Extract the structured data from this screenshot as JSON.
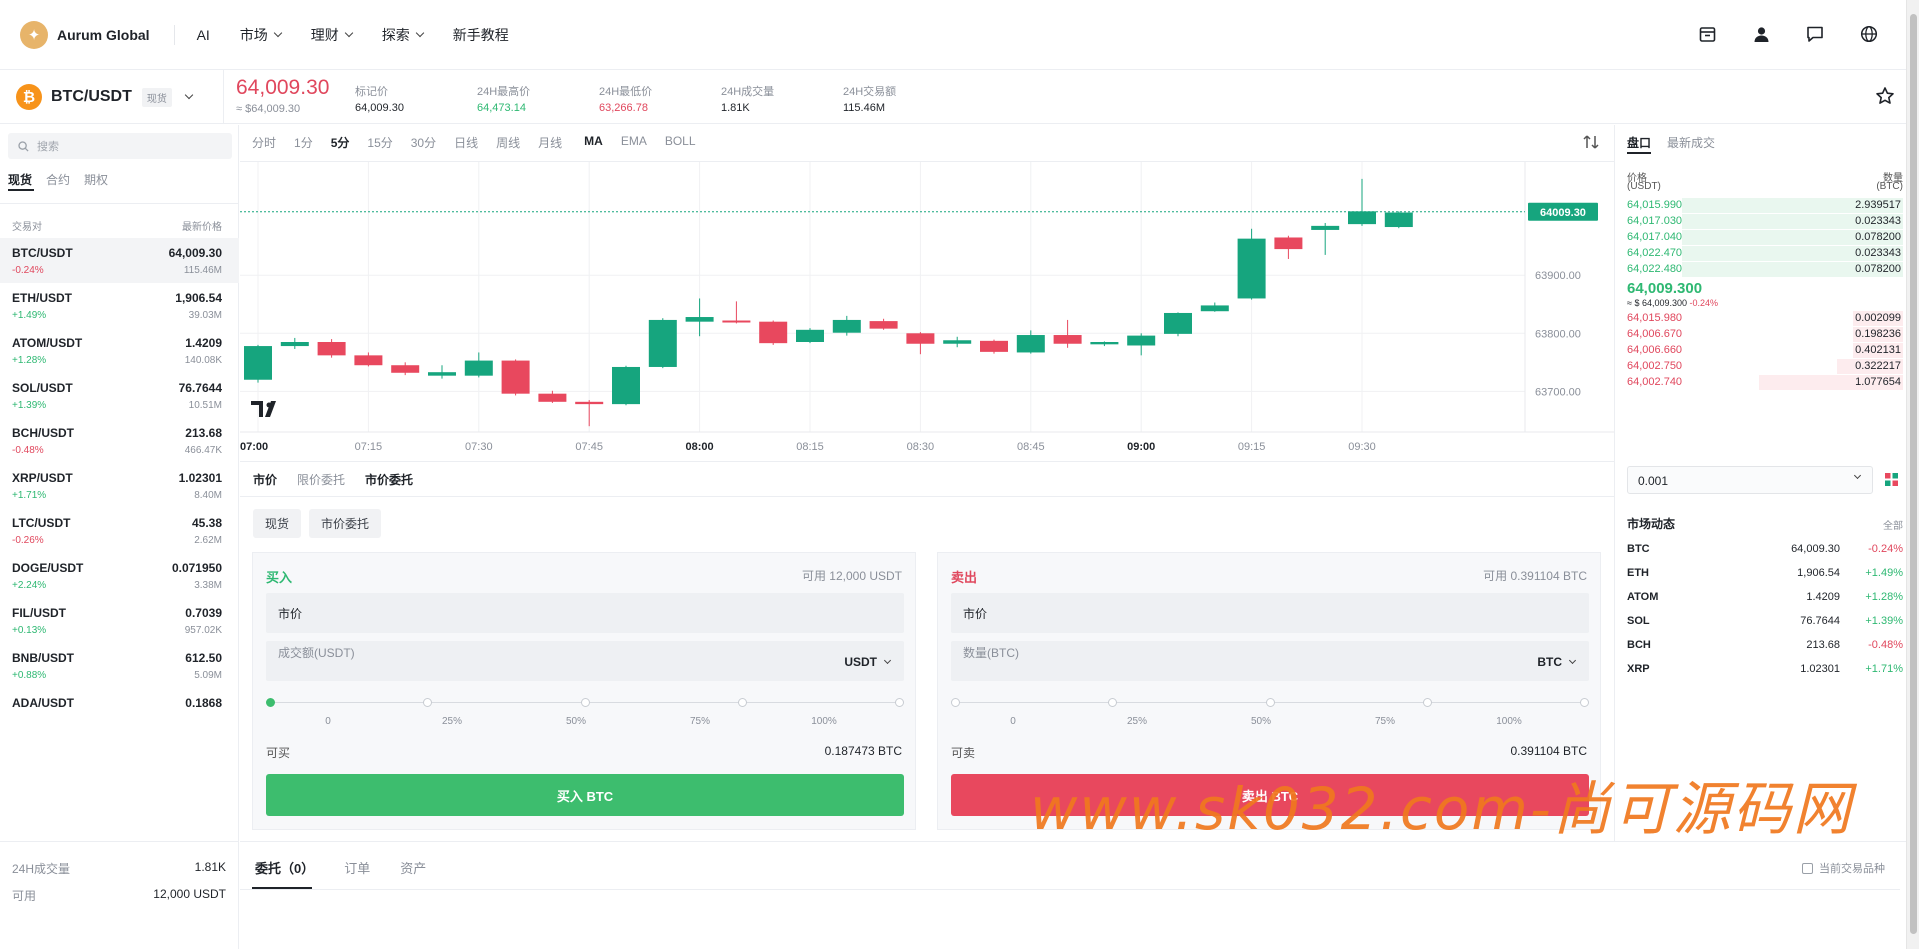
{
  "header": {
    "brand": "Aurum Global",
    "logo_glyph": "✦",
    "nav": [
      "AI",
      "市场",
      "理财",
      "探索",
      "新手教程"
    ],
    "nav_dropdown": [
      false,
      true,
      true,
      true,
      false
    ]
  },
  "ticker": {
    "symbol": "BTC/USDT",
    "coin_glyph": "₿",
    "market_tag": "现货",
    "last_price": "64,009.30",
    "last_price_usd": "≈ $64,009.30",
    "stats": [
      {
        "label": "标记价",
        "value": "64,009.30",
        "color": "#1f2329"
      },
      {
        "label": "24H最高价",
        "value": "64,473.14",
        "color": "#2eb872"
      },
      {
        "label": "24H最低价",
        "value": "63,266.78",
        "color": "#e0475d"
      },
      {
        "label": "24H成交量",
        "value": "1.81K",
        "color": "#1f2329"
      },
      {
        "label": "24H交易额",
        "value": "115.46M",
        "color": "#1f2329"
      }
    ]
  },
  "sidebar": {
    "search_placeholder": "搜索",
    "tabs": [
      "现货",
      "合约",
      "期权"
    ],
    "col_pair": "交易对",
    "col_price": "最新价格",
    "markets": [
      {
        "symbol": "BTC/USDT",
        "price": "64,009.30",
        "change": "-0.24%",
        "volume": "115.46M"
      },
      {
        "symbol": "ETH/USDT",
        "price": "1,906.54",
        "change": "+1.49%",
        "volume": "39.03M"
      },
      {
        "symbol": "ATOM/USDT",
        "price": "1.4209",
        "change": "+1.28%",
        "volume": "140.08K"
      },
      {
        "symbol": "SOL/USDT",
        "price": "76.7644",
        "change": "+1.39%",
        "volume": "10.51M"
      },
      {
        "symbol": "BCH/USDT",
        "price": "213.68",
        "change": "-0.48%",
        "volume": "466.47K"
      },
      {
        "symbol": "XRP/USDT",
        "price": "1.02301",
        "change": "+1.71%",
        "volume": "8.40M"
      },
      {
        "symbol": "LTC/USDT",
        "price": "45.38",
        "change": "-0.26%",
        "volume": "2.62M"
      },
      {
        "symbol": "DOGE/USDT",
        "price": "0.071950",
        "change": "+2.24%",
        "volume": "3.38M"
      },
      {
        "symbol": "FIL/USDT",
        "price": "0.7039",
        "change": "+0.13%",
        "volume": "957.02K"
      },
      {
        "symbol": "BNB/USDT",
        "price": "612.50",
        "change": "+0.88%",
        "volume": "5.09M"
      },
      {
        "symbol": "ADA/USDT",
        "price": "0.1868",
        "change": "",
        "volume": ""
      }
    ],
    "footer": {
      "vol_label": "24H成交量",
      "vol_value": "1.81K",
      "avail_label": "可用",
      "avail_value": "12,000 USDT"
    }
  },
  "chart_toolbar": {
    "intervals": [
      "分时",
      "1分",
      "5分",
      "15分",
      "30分",
      "日线",
      "周线",
      "月线"
    ],
    "active_interval": "5分",
    "indicators": [
      "MA",
      "EMA",
      "BOLL"
    ],
    "active_indicator": "MA"
  },
  "chart_data": {
    "type": "candlestick",
    "last_price_label": "64009.30",
    "last_price": 64009.3,
    "y_ticks": [
      63700,
      63800,
      63900
    ],
    "y_tick_labels": [
      "63700.00",
      "63800.00",
      "63900.00"
    ],
    "ylim": [
      63630,
      64095
    ],
    "x_ticks": [
      "07:00",
      "07:15",
      "07:30",
      "07:45",
      "08:00",
      "08:15",
      "08:30",
      "08:45",
      "09:00",
      "09:15",
      "09:30"
    ],
    "x_ticks_bold": [
      "07:00",
      "08:00",
      "09:00"
    ],
    "colors": {
      "up": "#16a57e",
      "down": "#e8485e"
    },
    "candles": [
      {
        "t": "07:00",
        "o": 63720,
        "h": 63780,
        "l": 63715,
        "c": 63778
      },
      {
        "t": "07:05",
        "o": 63778,
        "h": 63792,
        "l": 63773,
        "c": 63785
      },
      {
        "t": "07:10",
        "o": 63785,
        "h": 63790,
        "l": 63758,
        "c": 63762
      },
      {
        "t": "07:15",
        "o": 63762,
        "h": 63767,
        "l": 63743,
        "c": 63745
      },
      {
        "t": "07:20",
        "o": 63745,
        "h": 63750,
        "l": 63728,
        "c": 63732
      },
      {
        "t": "07:25",
        "o": 63727,
        "h": 63745,
        "l": 63722,
        "c": 63733
      },
      {
        "t": "07:30",
        "o": 63727,
        "h": 63767,
        "l": 63724,
        "c": 63753
      },
      {
        "t": "07:35",
        "o": 63753,
        "h": 63755,
        "l": 63693,
        "c": 63696
      },
      {
        "t": "07:40",
        "o": 63696,
        "h": 63701,
        "l": 63680,
        "c": 63682
      },
      {
        "t": "07:45",
        "o": 63682,
        "h": 63685,
        "l": 63640,
        "c": 63678
      },
      {
        "t": "07:50",
        "o": 63678,
        "h": 63744,
        "l": 63676,
        "c": 63742
      },
      {
        "t": "07:55",
        "o": 63742,
        "h": 63826,
        "l": 63740,
        "c": 63823
      },
      {
        "t": "08:00",
        "o": 63820,
        "h": 63860,
        "l": 63795,
        "c": 63828
      },
      {
        "t": "08:05",
        "o": 63822,
        "h": 63855,
        "l": 63817,
        "c": 63820
      },
      {
        "t": "08:10",
        "o": 63820,
        "h": 63822,
        "l": 63780,
        "c": 63783
      },
      {
        "t": "08:15",
        "o": 63785,
        "h": 63809,
        "l": 63783,
        "c": 63806
      },
      {
        "t": "08:20",
        "o": 63801,
        "h": 63830,
        "l": 63796,
        "c": 63823
      },
      {
        "t": "08:25",
        "o": 63821,
        "h": 63825,
        "l": 63806,
        "c": 63808
      },
      {
        "t": "08:30",
        "o": 63800,
        "h": 63802,
        "l": 63764,
        "c": 63782
      },
      {
        "t": "08:35",
        "o": 63782,
        "h": 63794,
        "l": 63776,
        "c": 63788
      },
      {
        "t": "08:40",
        "o": 63787,
        "h": 63789,
        "l": 63765,
        "c": 63768
      },
      {
        "t": "08:45",
        "o": 63767,
        "h": 63805,
        "l": 63765,
        "c": 63797
      },
      {
        "t": "08:50",
        "o": 63797,
        "h": 63823,
        "l": 63775,
        "c": 63782
      },
      {
        "t": "08:55",
        "o": 63781,
        "h": 63786,
        "l": 63778,
        "c": 63785
      },
      {
        "t": "09:00",
        "o": 63779,
        "h": 63800,
        "l": 63762,
        "c": 63796
      },
      {
        "t": "09:05",
        "o": 63799,
        "h": 63836,
        "l": 63795,
        "c": 63835
      },
      {
        "t": "09:10",
        "o": 63838,
        "h": 63853,
        "l": 63837,
        "c": 63848
      },
      {
        "t": "09:15",
        "o": 63860,
        "h": 63980,
        "l": 63858,
        "c": 63963
      },
      {
        "t": "09:20",
        "o": 63965,
        "h": 63968,
        "l": 63928,
        "c": 63945
      },
      {
        "t": "09:25",
        "o": 63978,
        "h": 63990,
        "l": 63935,
        "c": 63985
      },
      {
        "t": "09:30",
        "o": 63988,
        "h": 64066,
        "l": 63985,
        "c": 64010
      },
      {
        "t": "09:35",
        "o": 63983,
        "h": 64010,
        "l": 63981,
        "c": 64008
      }
    ]
  },
  "order_type_tabs": [
    "市价",
    "限价委托",
    "市价委托"
  ],
  "order_sub_tabs": [
    "现货",
    "市价委托"
  ],
  "buy": {
    "title": "买入",
    "available": "可用 12,000 USDT",
    "type_value": "市价",
    "field_label": "成交额(USDT)",
    "currency": "USDT",
    "qty_label": "可买",
    "qty_value": "0.187473 BTC",
    "button": "买入 BTC",
    "color": "#3dbd6e"
  },
  "sell": {
    "title": "卖出",
    "available": "可用 0.391104 BTC",
    "type_value": "市价",
    "field_label": "数量(BTC)",
    "currency": "BTC",
    "qty_label": "可卖",
    "qty_value": "0.391104 BTC",
    "button": "卖出 BTC",
    "color": "#e8485e"
  },
  "slider_labels": [
    "0",
    "25%",
    "50%",
    "75%",
    "100%"
  ],
  "bottom": {
    "tabs": [
      "委托（0）",
      "订单",
      "资产"
    ],
    "checkbox_label": "当前交易品种"
  },
  "orderbook": {
    "tabs": [
      "盘口",
      "最新成交"
    ],
    "col_price": "价格",
    "col_price_unit": "(USDT)",
    "col_amount": "数量",
    "col_amount_unit": "(BTC)",
    "asks": [
      {
        "price": "64,015.990",
        "amount": "2.939517",
        "depth": 0.8
      },
      {
        "price": "64,017.030",
        "amount": "0.023343",
        "depth": 0.8
      },
      {
        "price": "64,017.040",
        "amount": "0.078200",
        "depth": 0.8
      },
      {
        "price": "64,022.470",
        "amount": "0.023343",
        "depth": 0.8
      },
      {
        "price": "64,022.480",
        "amount": "0.078200",
        "depth": 0.8
      }
    ],
    "mid_price": "64,009.300",
    "mid_sub": "≈ $ 64,009.300",
    "mid_change": "-0.24%",
    "bids": [
      {
        "price": "64,015.980",
        "amount": "0.002099",
        "depth": 0.18
      },
      {
        "price": "64,006.670",
        "amount": "0.198236",
        "depth": 0.18
      },
      {
        "price": "64,006.660",
        "amount": "0.402131",
        "depth": 0.18
      },
      {
        "price": "64,002.750",
        "amount": "0.322217",
        "depth": 0.24
      },
      {
        "price": "64,002.740",
        "amount": "1.077654",
        "depth": 0.52
      }
    ],
    "precision": "0.001"
  },
  "market_feed": {
    "title": "市场动态",
    "all": "全部",
    "items": [
      {
        "name": "BTC",
        "price": "64,009.30",
        "change": "-0.24%"
      },
      {
        "name": "ETH",
        "price": "1,906.54",
        "change": "+1.49%"
      },
      {
        "name": "ATOM",
        "price": "1.4209",
        "change": "+1.28%"
      },
      {
        "name": "SOL",
        "price": "76.7644",
        "change": "+1.39%"
      },
      {
        "name": "BCH",
        "price": "213.68",
        "change": "-0.48%"
      },
      {
        "name": "XRP",
        "price": "1.02301",
        "change": "+1.71%"
      }
    ]
  },
  "watermark": "www.sk032.com-尚可源码网"
}
